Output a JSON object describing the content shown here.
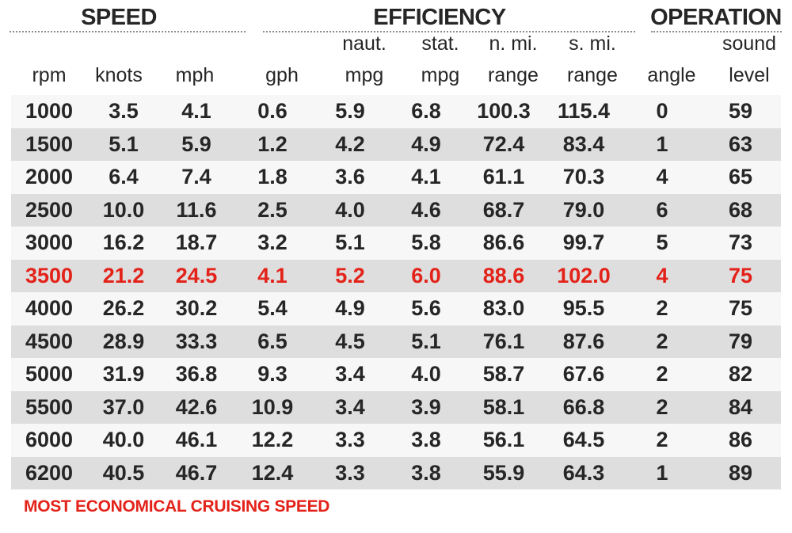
{
  "groups": {
    "speed": "SPEED",
    "efficiency": "EFFICIENCY",
    "operation": "OPERATION"
  },
  "headers": {
    "rpm": [
      "",
      "rpm"
    ],
    "knots": [
      "",
      "knots"
    ],
    "mph": [
      "",
      "mph"
    ],
    "gph": [
      "",
      "gph"
    ],
    "naut_mpg": [
      "naut.",
      "mpg"
    ],
    "stat_mpg": [
      "stat.",
      "mpg"
    ],
    "n_mi_range": [
      "n. mi.",
      "range"
    ],
    "s_mi_range": [
      "s. mi.",
      "range"
    ],
    "angle": [
      "",
      "angle"
    ],
    "sound_level": [
      "sound",
      "level"
    ]
  },
  "chart_data": {
    "type": "table",
    "column_groups": [
      {
        "name": "SPEED",
        "columns": [
          "rpm",
          "knots",
          "mph"
        ]
      },
      {
        "name": "EFFICIENCY",
        "columns": [
          "gph",
          "naut. mpg",
          "stat. mpg",
          "n. mi. range",
          "s. mi. range"
        ]
      },
      {
        "name": "OPERATION",
        "columns": [
          "angle",
          "sound level"
        ]
      }
    ],
    "columns": [
      "rpm",
      "knots",
      "mph",
      "gph",
      "naut. mpg",
      "stat. mpg",
      "n. mi. range",
      "s. mi. range",
      "angle",
      "sound level"
    ],
    "rows": [
      [
        "1000",
        "3.5",
        "4.1",
        "0.6",
        "5.9",
        "6.8",
        "100.3",
        "115.4",
        "0",
        "59"
      ],
      [
        "1500",
        "5.1",
        "5.9",
        "1.2",
        "4.2",
        "4.9",
        "72.4",
        "83.4",
        "1",
        "63"
      ],
      [
        "2000",
        "6.4",
        "7.4",
        "1.8",
        "3.6",
        "4.1",
        "61.1",
        "70.3",
        "4",
        "65"
      ],
      [
        "2500",
        "10.0",
        "11.6",
        "2.5",
        "4.0",
        "4.6",
        "68.7",
        "79.0",
        "6",
        "68"
      ],
      [
        "3000",
        "16.2",
        "18.7",
        "3.2",
        "5.1",
        "5.8",
        "86.6",
        "99.7",
        "5",
        "73"
      ],
      [
        "3500",
        "21.2",
        "24.5",
        "4.1",
        "5.2",
        "6.0",
        "88.6",
        "102.0",
        "4",
        "75"
      ],
      [
        "4000",
        "26.2",
        "30.2",
        "5.4",
        "4.9",
        "5.6",
        "83.0",
        "95.5",
        "2",
        "75"
      ],
      [
        "4500",
        "28.9",
        "33.3",
        "6.5",
        "4.5",
        "5.1",
        "76.1",
        "87.6",
        "2",
        "79"
      ],
      [
        "5000",
        "31.9",
        "36.8",
        "9.3",
        "3.4",
        "4.0",
        "58.7",
        "67.6",
        "2",
        "82"
      ],
      [
        "5500",
        "37.0",
        "42.6",
        "10.9",
        "3.4",
        "3.9",
        "58.1",
        "66.8",
        "2",
        "84"
      ],
      [
        "6000",
        "40.0",
        "46.1",
        "12.2",
        "3.3",
        "3.8",
        "56.1",
        "64.5",
        "2",
        "86"
      ],
      [
        "6200",
        "40.5",
        "46.7",
        "12.4",
        "3.3",
        "3.8",
        "55.9",
        "64.3",
        "1",
        "89"
      ]
    ],
    "highlight_row": 5,
    "highlight_color": "#e32219"
  },
  "footnote": "MOST ECONOMICAL CRUISING SPEED",
  "colors": {
    "text": "#262626",
    "highlight": "#e32219",
    "row_light": "#f7f7f7",
    "row_dark": "#dedede"
  }
}
